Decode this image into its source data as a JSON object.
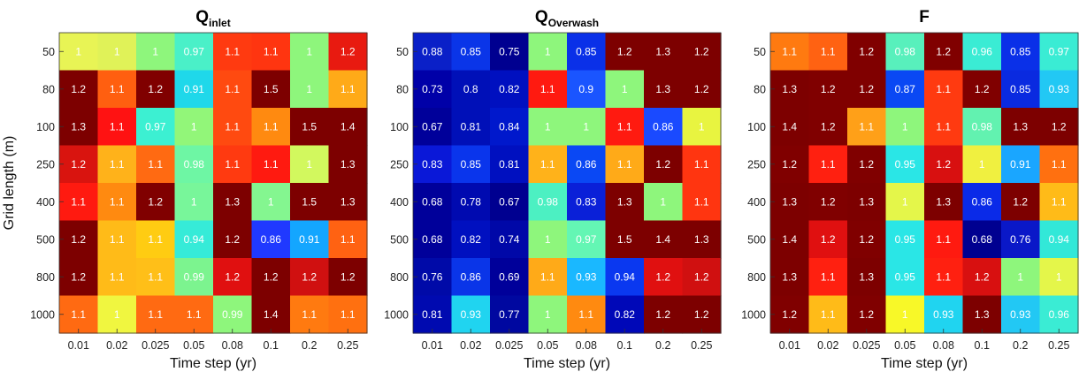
{
  "chart_data": [
    {
      "type": "heatmap",
      "title": "Q",
      "title_subscript": "inlet",
      "xlabel": "Time step (yr)",
      "ylabel": "Grid length (m)",
      "x": [
        "0.01",
        "0.02",
        "0.025",
        "0.05",
        "0.08",
        "0.1",
        "0.2",
        "0.25"
      ],
      "y": [
        "50",
        "80",
        "100",
        "250",
        "400",
        "500",
        "800",
        "1000"
      ],
      "values": [
        [
          1,
          1,
          1,
          0.97,
          1.1,
          1.1,
          1,
          1.2
        ],
        [
          1.2,
          1.1,
          1.2,
          0.91,
          1.1,
          1.5,
          1,
          1.1
        ],
        [
          1.3,
          1.1,
          0.97,
          1,
          1.1,
          1.1,
          1.5,
          1.4
        ],
        [
          1.2,
          1.1,
          1.1,
          0.98,
          1.1,
          1.1,
          1,
          1.3
        ],
        [
          1.1,
          1.1,
          1.2,
          1,
          1.3,
          1,
          1.5,
          1.3
        ],
        [
          1.2,
          1.1,
          1.1,
          0.94,
          1.2,
          0.86,
          0.91,
          1.1
        ],
        [
          1.2,
          1.1,
          1.1,
          0.99,
          1.2,
          1.2,
          1.2,
          1.2
        ],
        [
          1.1,
          1,
          1.1,
          1.1,
          0.99,
          1.4,
          1.1,
          1.1
        ]
      ],
      "colors": [
        [
          "#e8f455",
          "#e0f258",
          "#8ef67c",
          "#4af0c8",
          "#ff3a10",
          "#ff3510",
          "#8ef67c",
          "#e81a10"
        ],
        [
          "#7d0000",
          "#ff5f10",
          "#800000",
          "#1fd8ea",
          "#ff4a10",
          "#7d0000",
          "#8ef67c",
          "#ffaa18"
        ],
        [
          "#7d0000",
          "#ff1212",
          "#3cf0d2",
          "#92f679",
          "#ff4a10",
          "#ff8a10",
          "#7d0000",
          "#7d0000"
        ],
        [
          "#d9140f",
          "#ffb21a",
          "#ff6a12",
          "#6ef6a4",
          "#ff3a10",
          "#ff1a10",
          "#d2f85e",
          "#7d0000"
        ],
        [
          "#ff1a10",
          "#ff8a10",
          "#800000",
          "#78f69a",
          "#7d0000",
          "#84f690",
          "#7d0000",
          "#7d0000"
        ],
        [
          "#7d0000",
          "#ffbb18",
          "#ffcc12",
          "#36ebd8",
          "#7d0000",
          "#2039ff",
          "#14a6ff",
          "#ff6212"
        ],
        [
          "#7d0000",
          "#ffbb18",
          "#ffbf18",
          "#7cf48f",
          "#e01010",
          "#7d0000",
          "#d01010",
          "#7d0000"
        ],
        [
          "#ff6a12",
          "#f0f640",
          "#ff6a12",
          "#ff6a12",
          "#8ef67c",
          "#7d0000",
          "#ff7a10",
          "#ff7010"
        ]
      ],
      "label_colors": [
        [
          "#ffffff",
          "#ffffff",
          "#ffffff",
          "#ffffff",
          "#ffffff",
          "#ffffff",
          "#ffffff",
          "#ffffff"
        ],
        [
          "#ffffff",
          "#ffffff",
          "#ffffff",
          "#ffffff",
          "#ffffff",
          "#ffffff",
          "#ffffff",
          "#ffffff"
        ],
        [
          "#ffffff",
          "#ffffff",
          "#ffffff",
          "#ffffff",
          "#ffffff",
          "#ffffff",
          "#ffffff",
          "#ffffff"
        ],
        [
          "#ffffff",
          "#ffffff",
          "#ffffff",
          "#ffffff",
          "#ffffff",
          "#ffffff",
          "#ffffff",
          "#ffffff"
        ],
        [
          "#ffffff",
          "#ffffff",
          "#ffffff",
          "#ffffff",
          "#ffffff",
          "#ffffff",
          "#ffffff",
          "#ffffff"
        ],
        [
          "#ffffff",
          "#ffffff",
          "#ffffff",
          "#ffffff",
          "#ffffff",
          "#ffffff",
          "#ffffff",
          "#ffffff"
        ],
        [
          "#ffffff",
          "#ffffff",
          "#ffffff",
          "#ffffff",
          "#ffffff",
          "#ffffff",
          "#ffffff",
          "#ffffff"
        ],
        [
          "#ffffff",
          "#ffffff",
          "#ffffff",
          "#ffffff",
          "#ffffff",
          "#ffffff",
          "#ffffff",
          "#ffffff"
        ]
      ]
    },
    {
      "type": "heatmap",
      "title": "Q",
      "title_subscript": "Overwash",
      "xlabel": "Time step (yr)",
      "ylabel": "",
      "x": [
        "0.01",
        "0.02",
        "0.025",
        "0.05",
        "0.08",
        "0.1",
        "0.2",
        "0.25"
      ],
      "y": [
        "50",
        "80",
        "100",
        "250",
        "400",
        "500",
        "800",
        "1000"
      ],
      "values": [
        [
          0.88,
          0.85,
          0.75,
          1,
          0.85,
          1.2,
          1.3,
          1.2
        ],
        [
          0.73,
          0.8,
          0.82,
          1.1,
          0.9,
          1,
          1.3,
          1.2
        ],
        [
          0.67,
          0.81,
          0.84,
          1,
          1,
          1.1,
          0.86,
          1
        ],
        [
          0.83,
          0.85,
          0.81,
          1.1,
          0.86,
          1.1,
          1.2,
          1.1
        ],
        [
          0.68,
          0.78,
          0.67,
          0.98,
          0.83,
          1.3,
          1,
          1.1
        ],
        [
          0.68,
          0.82,
          0.74,
          1,
          0.97,
          1.5,
          1.4,
          1.3
        ],
        [
          0.76,
          0.86,
          0.69,
          1.1,
          0.93,
          0.94,
          1.2,
          1.2
        ],
        [
          0.81,
          0.93,
          0.77,
          1,
          1.1,
          0.82,
          1.2,
          1.2
        ]
      ],
      "colors": [
        [
          "#0a20c8",
          "#0a35e8",
          "#000090",
          "#8ef67c",
          "#0a30e8",
          "#7d0000",
          "#7d0000",
          "#7d0000"
        ],
        [
          "#0000a8",
          "#0010b8",
          "#0010c0",
          "#ff1a10",
          "#1a55ff",
          "#8ef67c",
          "#7d0000",
          "#7d0000"
        ],
        [
          "#00009a",
          "#0010b8",
          "#0018cc",
          "#8ef67c",
          "#8ef67c",
          "#ff1a10",
          "#1a4aff",
          "#e8f440"
        ],
        [
          "#0a18d8",
          "#0a35ec",
          "#0010c0",
          "#ffb21a",
          "#0a48f4",
          "#ffaa18",
          "#7d0000",
          "#ff3510"
        ],
        [
          "#00009a",
          "#000ab0",
          "#000090",
          "#4cf0c2",
          "#0a20d8",
          "#7d0000",
          "#8ef67c",
          "#ff3510"
        ],
        [
          "#00009a",
          "#0010c0",
          "#0008a8",
          "#8ef67c",
          "#64f6b4",
          "#7d0000",
          "#7d0000",
          "#7d0000"
        ],
        [
          "#000aa8",
          "#0a35e8",
          "#00009a",
          "#ffaa18",
          "#1ab8ff",
          "#0a38f0",
          "#e01010",
          "#d01010"
        ],
        [
          "#000ab0",
          "#20d4f0",
          "#0008a0",
          "#8ef67c",
          "#ff8a10",
          "#0008b8",
          "#7d0000",
          "#7d0000"
        ]
      ],
      "label_colors": [
        [
          "#ffffff",
          "#ffffff",
          "#ffffff",
          "#ffffff",
          "#ffffff",
          "#ffffff",
          "#ffffff",
          "#ffffff"
        ],
        [
          "#ffffff",
          "#ffffff",
          "#ffffff",
          "#ffffff",
          "#ffffff",
          "#ffffff",
          "#ffffff",
          "#ffffff"
        ],
        [
          "#ffffff",
          "#ffffff",
          "#ffffff",
          "#ffffff",
          "#ffffff",
          "#ffffff",
          "#ffffff",
          "#ffffff"
        ],
        [
          "#ffffff",
          "#ffffff",
          "#ffffff",
          "#ffffff",
          "#ffffff",
          "#ffffff",
          "#ffffff",
          "#ffffff"
        ],
        [
          "#ffffff",
          "#ffffff",
          "#ffffff",
          "#ffffff",
          "#ffffff",
          "#ffffff",
          "#ffffff",
          "#ffffff"
        ],
        [
          "#ffffff",
          "#ffffff",
          "#ffffff",
          "#ffffff",
          "#ffffff",
          "#ffffff",
          "#ffffff",
          "#ffffff"
        ],
        [
          "#ffffff",
          "#ffffff",
          "#ffffff",
          "#ffffff",
          "#ffffff",
          "#ffffff",
          "#ffffff",
          "#ffffff"
        ],
        [
          "#ffffff",
          "#ffffff",
          "#ffffff",
          "#ffffff",
          "#ffffff",
          "#ffffff",
          "#ffffff",
          "#ffffff"
        ]
      ]
    },
    {
      "type": "heatmap",
      "title": "F",
      "title_subscript": "",
      "xlabel": "Time step (yr)",
      "ylabel": "",
      "x": [
        "0.01",
        "0.02",
        "0.025",
        "0.05",
        "0.08",
        "0.1",
        "0.2",
        "0.25"
      ],
      "y": [
        "50",
        "80",
        "100",
        "250",
        "400",
        "500",
        "800",
        "1000"
      ],
      "values": [
        [
          1.1,
          1.1,
          1.2,
          0.98,
          1.2,
          0.96,
          0.85,
          0.97
        ],
        [
          1.3,
          1.2,
          1.2,
          0.87,
          1.1,
          1.2,
          0.85,
          0.93
        ],
        [
          1.4,
          1.2,
          1.1,
          1,
          1.1,
          0.98,
          1.3,
          1.2
        ],
        [
          1.2,
          1.1,
          1.2,
          0.95,
          1.2,
          1,
          0.91,
          1.1
        ],
        [
          1.3,
          1.2,
          1.3,
          1,
          1.3,
          0.86,
          1.2,
          1.1
        ],
        [
          1.4,
          1.2,
          1.2,
          0.95,
          1.1,
          0.68,
          0.76,
          0.94
        ],
        [
          1.3,
          1.1,
          1.3,
          0.95,
          1.1,
          1.2,
          1,
          1
        ],
        [
          1.2,
          1.1,
          1.2,
          1,
          0.93,
          1.3,
          0.93,
          0.96
        ]
      ],
      "colors": [
        [
          "#ff7a10",
          "#ff6212",
          "#800000",
          "#58f0bc",
          "#800000",
          "#3aecd4",
          "#0a30e8",
          "#3aecd4"
        ],
        [
          "#7d0000",
          "#800000",
          "#800000",
          "#0a48f4",
          "#ff3a10",
          "#800000",
          "#0a2ae0",
          "#22c8f4"
        ],
        [
          "#7d0000",
          "#800000",
          "#ffa018",
          "#8ef67c",
          "#ff3a10",
          "#62f2b0",
          "#7d0000",
          "#7d0000"
        ],
        [
          "#800000",
          "#ff2010",
          "#800000",
          "#2ae6e6",
          "#d81010",
          "#f0f040",
          "#1aa6ff",
          "#ff7010"
        ],
        [
          "#7d0000",
          "#800000",
          "#7d0000",
          "#e4f64a",
          "#7d0000",
          "#0a2ae8",
          "#7d0000",
          "#ffbb18"
        ],
        [
          "#7d0000",
          "#e01010",
          "#800000",
          "#2ae6e6",
          "#ff1a10",
          "#000090",
          "#0a18c8",
          "#32e8d8"
        ],
        [
          "#7d0000",
          "#ff2010",
          "#7d0000",
          "#2ae6e6",
          "#ff2010",
          "#d81010",
          "#8ef67c",
          "#e4f64a"
        ],
        [
          "#800000",
          "#ffbb18",
          "#800000",
          "#f8f828",
          "#20d4f0",
          "#7d0000",
          "#22c8f4",
          "#3aecd4"
        ]
      ],
      "label_colors": [
        [
          "#ffffff",
          "#ffffff",
          "#ffffff",
          "#ffffff",
          "#ffffff",
          "#ffffff",
          "#ffffff",
          "#ffffff"
        ],
        [
          "#ffffff",
          "#ffffff",
          "#ffffff",
          "#ffffff",
          "#ffffff",
          "#ffffff",
          "#ffffff",
          "#ffffff"
        ],
        [
          "#ffffff",
          "#ffffff",
          "#ffffff",
          "#ffffff",
          "#ffffff",
          "#ffffff",
          "#ffffff",
          "#ffffff"
        ],
        [
          "#ffffff",
          "#ffffff",
          "#ffffff",
          "#ffffff",
          "#ffffff",
          "#ffffff",
          "#ffffff",
          "#ffffff"
        ],
        [
          "#ffffff",
          "#ffffff",
          "#ffffff",
          "#ffffff",
          "#ffffff",
          "#ffffff",
          "#ffffff",
          "#ffffff"
        ],
        [
          "#ffffff",
          "#ffffff",
          "#ffffff",
          "#ffffff",
          "#ffffff",
          "#ffffff",
          "#ffffff",
          "#ffffff"
        ],
        [
          "#ffffff",
          "#ffffff",
          "#ffffff",
          "#ffffff",
          "#ffffff",
          "#ffffff",
          "#ffffff",
          "#ffffff"
        ],
        [
          "#ffffff",
          "#ffffff",
          "#ffffff",
          "#ffffff",
          "#ffffff",
          "#ffffff",
          "#ffffff",
          "#ffffff"
        ]
      ]
    }
  ]
}
